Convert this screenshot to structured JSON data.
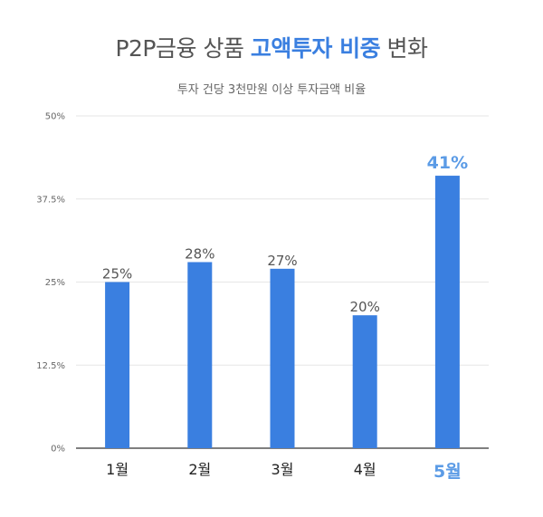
{
  "title": {
    "prefix": "P2P금융 상품 ",
    "highlight": "고액투자 비중",
    "suffix": " 변화"
  },
  "subtitle": "투자 건당 3천만원 이상 투자금액 비율",
  "colors": {
    "bar": "#3a7fe0",
    "highlight": "#5b9be6",
    "grid": "#e6e6e6",
    "axis": "#333333"
  },
  "chart_data": {
    "type": "bar",
    "title": "P2P금융 상품 고액투자 비중 변화",
    "subtitle": "투자 건당 3천만원 이상 투자금액 비율",
    "categories": [
      "1월",
      "2월",
      "3월",
      "4월",
      "5월"
    ],
    "values": [
      25,
      28,
      27,
      20,
      41
    ],
    "data_labels": [
      "25%",
      "28%",
      "27%",
      "20%",
      "41%"
    ],
    "highlight_index": 4,
    "y_ticks": [
      0,
      12.5,
      25,
      37.5,
      50
    ],
    "y_tick_labels": [
      "0%",
      "12.5%",
      "25%",
      "37.5%",
      "50%"
    ],
    "ylim": [
      0,
      50
    ],
    "grid": true,
    "legend": "none",
    "xlabel": "",
    "ylabel": ""
  }
}
